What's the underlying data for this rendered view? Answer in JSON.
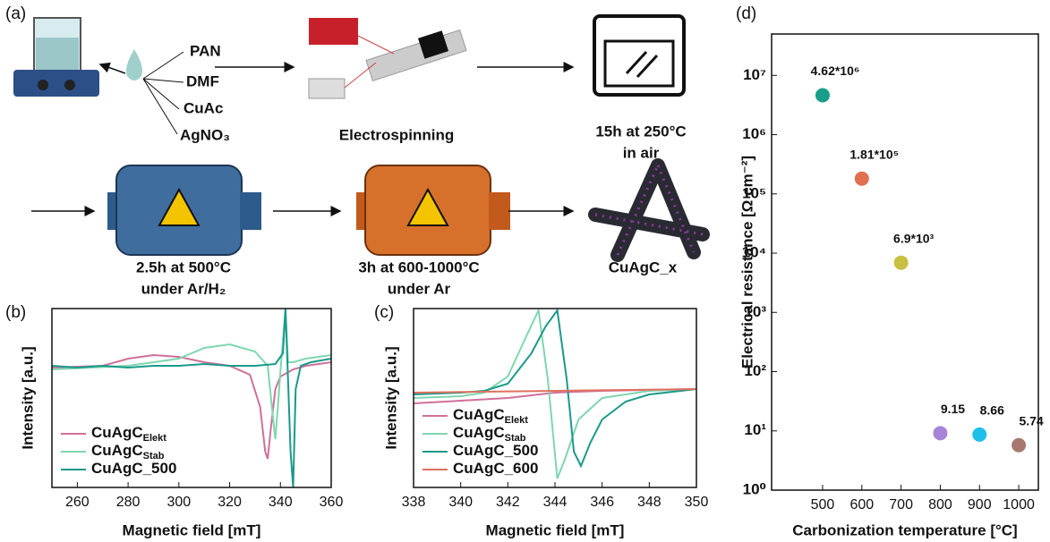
{
  "diagram": {
    "panel_labels": [
      "(a)",
      "(b)",
      "(c)",
      "(d)"
    ],
    "precursors": [
      "PAN",
      "DMF",
      "CuAc",
      "AgNO₃"
    ],
    "electrospinning": "Electrospinning",
    "oven": [
      "15h at 250°C",
      "in air"
    ],
    "reduction": [
      "2.5h at 500°C",
      "under Ar/H₂"
    ],
    "carbonization": [
      "3h at 600-1000°C",
      "under Ar"
    ],
    "product": "CuAgC_x"
  },
  "chart_data": [
    {
      "type": "line",
      "xlabel": "Magnetic field [mT]",
      "ylabel": "Intensity [a.u.]",
      "xlim": [
        250,
        360
      ],
      "xticks": [
        260,
        280,
        300,
        320,
        340,
        360
      ],
      "ylim": [
        0,
        100
      ],
      "legend": "lower left",
      "series": [
        {
          "name": "CuAgC",
          "subscript": "Elekt",
          "color": "#d0709a",
          "x": [
            250,
            270,
            280,
            290,
            300,
            310,
            320,
            328,
            332,
            334,
            335,
            336,
            338,
            340,
            345,
            350,
            360
          ],
          "values": [
            67,
            68,
            72,
            74,
            73,
            70,
            68,
            63,
            45,
            20,
            16,
            30,
            55,
            62,
            66,
            68,
            70
          ]
        },
        {
          "name": "CuAgC",
          "subscript": "Stab",
          "color": "#7fd6b0",
          "x": [
            250,
            280,
            300,
            310,
            320,
            330,
            335,
            337,
            338,
            339,
            340,
            342,
            343,
            345,
            350,
            360
          ],
          "values": [
            66,
            68,
            72,
            78,
            80,
            76,
            68,
            40,
            27,
            45,
            65,
            100,
            70,
            70,
            72,
            74
          ]
        },
        {
          "name": "CuAgC_500",
          "color": "#1a9a8a",
          "x": [
            250,
            260,
            270,
            280,
            290,
            300,
            310,
            320,
            330,
            338,
            341,
            342,
            343,
            344,
            345,
            346,
            348,
            352,
            360
          ],
          "values": [
            68,
            67,
            68,
            67,
            68,
            68,
            69,
            68,
            68,
            69,
            75,
            100,
            60,
            20,
            0,
            55,
            68,
            70,
            72
          ]
        }
      ]
    },
    {
      "type": "line",
      "xlabel": "Magnetic field [mT]",
      "ylabel": "Intensity [a.u.]",
      "xlim": [
        338,
        350
      ],
      "xticks": [
        338,
        340,
        342,
        344,
        346,
        348,
        350
      ],
      "ylim": [
        0,
        100
      ],
      "legend": "lower left",
      "series": [
        {
          "name": "CuAgC",
          "subscript": "Elekt",
          "color": "#d0709a",
          "x": [
            338,
            342,
            344,
            346,
            350
          ],
          "values": [
            47,
            50,
            53,
            54,
            55
          ]
        },
        {
          "name": "CuAgC",
          "subscript": "Stab",
          "color": "#7fd6b0",
          "x": [
            338,
            340,
            341,
            342,
            342.8,
            343.3,
            343.7,
            344.1,
            344.4,
            345,
            346,
            348,
            350
          ],
          "values": [
            50,
            51,
            53,
            62,
            85,
            99,
            60,
            5,
            15,
            38,
            50,
            54,
            55
          ]
        },
        {
          "name": "CuAgC_500",
          "color": "#1a9a8a",
          "x": [
            338,
            340,
            341,
            342,
            343,
            343.6,
            344.1,
            344.5,
            344.8,
            345.1,
            345.5,
            346,
            347,
            348,
            350
          ],
          "values": [
            52,
            53,
            54,
            58,
            75,
            90,
            99,
            60,
            20,
            12,
            25,
            38,
            48,
            52,
            55
          ]
        },
        {
          "name": "CuAgC_600",
          "color": "#e07060",
          "x": [
            338,
            344,
            350
          ],
          "values": [
            53,
            54,
            55
          ]
        }
      ]
    },
    {
      "type": "scatter",
      "xlabel": "Carbonization temperature [°C]",
      "ylabel": "Electrical resistance [Ω cm⁻²]",
      "xlim": [
        370,
        1050
      ],
      "xticks": [
        500,
        600,
        700,
        800,
        900,
        1000
      ],
      "ylim": [
        1,
        50000000
      ],
      "log_scale": true,
      "yticks": [
        {
          "value": 1,
          "label": "10⁰"
        },
        {
          "value": 10,
          "label": "10¹"
        },
        {
          "value": 100,
          "label": "10²"
        },
        {
          "value": 1000,
          "label": "10³"
        },
        {
          "value": 10000,
          "label": "10⁴"
        },
        {
          "value": 100000,
          "label": "10⁵"
        },
        {
          "value": 1000000,
          "label": "10⁶"
        },
        {
          "value": 10000000,
          "label": "10⁷"
        }
      ],
      "x": [
        500,
        600,
        700,
        800,
        900,
        1000
      ],
      "values": [
        4620000,
        181000,
        6900,
        9.15,
        8.66,
        5.74
      ],
      "value_labels": [
        "4.62*10⁶",
        "1.81*10⁵",
        "6.9*10³",
        "9.15",
        "8.66",
        "5.74"
      ],
      "colors": [
        "#169e8a",
        "#e07050",
        "#c8c040",
        "#a884d8",
        "#1cc0e8",
        "#a87870"
      ]
    }
  ]
}
